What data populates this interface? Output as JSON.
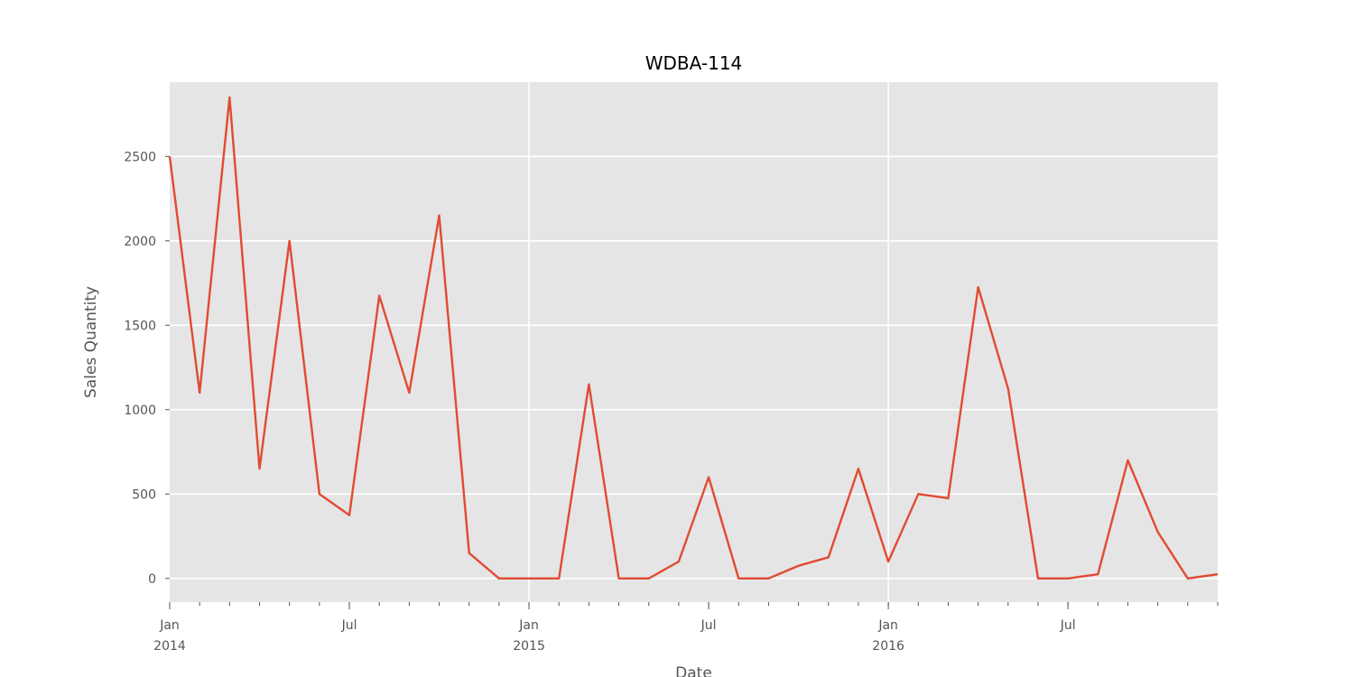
{
  "chart_data": {
    "type": "line",
    "title": "WDBA-114",
    "xlabel": "Date",
    "ylabel": "Sales Quantity",
    "x_range": [
      "2014-01",
      "2016-12"
    ],
    "ylim": [
      -140,
      2940
    ],
    "grid": true,
    "background": "#e5e5e5",
    "grid_color": "#ffffff",
    "series": [
      {
        "color": "#e24a33",
        "x": [
          "2014-01",
          "2014-02",
          "2014-03",
          "2014-04",
          "2014-05",
          "2014-06",
          "2014-07",
          "2014-08",
          "2014-09",
          "2014-10",
          "2014-11",
          "2014-12",
          "2015-01",
          "2015-02",
          "2015-03",
          "2015-04",
          "2015-05",
          "2015-06",
          "2015-07",
          "2015-08",
          "2015-09",
          "2015-10",
          "2015-11",
          "2015-12",
          "2016-01",
          "2016-02",
          "2016-03",
          "2016-04",
          "2016-05",
          "2016-06",
          "2016-07",
          "2016-08",
          "2016-09",
          "2016-10",
          "2016-11",
          "2016-12"
        ],
        "values": [
          2500,
          1100,
          2850,
          650,
          2000,
          500,
          375,
          1675,
          1100,
          2150,
          150,
          0,
          0,
          0,
          1150,
          0,
          0,
          100,
          600,
          0,
          0,
          75,
          125,
          650,
          100,
          500,
          475,
          1725,
          1125,
          0,
          0,
          25,
          700,
          275,
          0,
          25
        ]
      }
    ],
    "y_ticks": [
      {
        "value": 0,
        "label": "0"
      },
      {
        "value": 500,
        "label": "500"
      },
      {
        "value": 1000,
        "label": "1000"
      },
      {
        "value": 1500,
        "label": "1500"
      },
      {
        "value": 2000,
        "label": "2000"
      },
      {
        "value": 2500,
        "label": "2500"
      }
    ],
    "x_major_ticks": [
      {
        "date": "2014-01",
        "label": "Jan",
        "sublabel": "2014",
        "gridline": false
      },
      {
        "date": "2014-07",
        "label": "Jul",
        "sublabel": "",
        "gridline": false
      },
      {
        "date": "2015-01",
        "label": "Jan",
        "sublabel": "2015",
        "gridline": true
      },
      {
        "date": "2015-07",
        "label": "Jul",
        "sublabel": "",
        "gridline": false
      },
      {
        "date": "2016-01",
        "label": "Jan",
        "sublabel": "2016",
        "gridline": true
      },
      {
        "date": "2016-07",
        "label": "Jul",
        "sublabel": "",
        "gridline": false
      }
    ]
  }
}
